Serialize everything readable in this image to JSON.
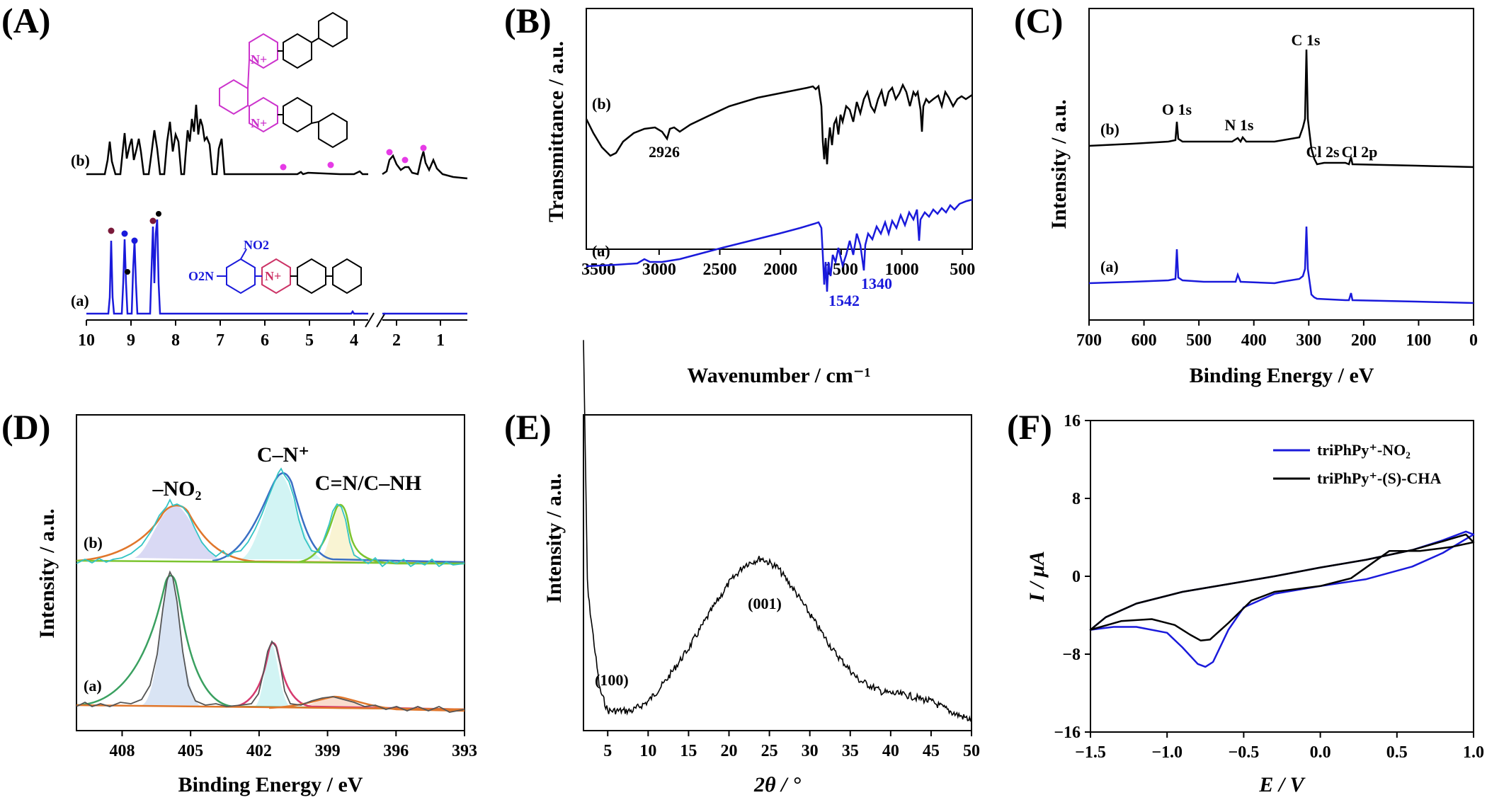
{
  "panels": [
    {
      "id": "A",
      "label": "(A)",
      "type": "line",
      "xlabel": "",
      "ylabel": "",
      "x_ticks": [
        10,
        9,
        8,
        7,
        6,
        5,
        4,
        2,
        1
      ],
      "axis_break_after": 4,
      "series_labels": [
        "(b)",
        "(a)"
      ],
      "structure_labels": {
        "nitro_top": "NO2",
        "nitro_left": "O2N",
        "n_plus": "N+"
      },
      "colors": {
        "a": "#1a1adb",
        "b": "#000000",
        "markers_b": "#e63be6",
        "marker_dark": "#7a1a3a",
        "structure_b": "#cc33cc"
      }
    },
    {
      "id": "B",
      "label": "(B)",
      "type": "line",
      "xlabel": "Wavenumber / cm⁻¹",
      "ylabel": "Transmittance / a.u.",
      "x_ticks": [
        3500,
        3000,
        2500,
        2000,
        1500,
        1000,
        500
      ],
      "xlim": [
        3600,
        420
      ],
      "series_labels": [
        "(b)",
        "(a)"
      ],
      "annotations": [
        "2926",
        "1542",
        "1340"
      ],
      "colors": {
        "a": "#1a1adb",
        "b": "#000000"
      }
    },
    {
      "id": "C",
      "label": "(C)",
      "type": "line",
      "xlabel": "Binding Energy / eV",
      "ylabel": "Intensity / a.u.",
      "x_ticks": [
        700,
        600,
        500,
        400,
        300,
        200,
        100,
        0
      ],
      "xlim": [
        700,
        0
      ],
      "series_labels": [
        "(b)",
        "(a)"
      ],
      "annotations": [
        "C 1s",
        "O 1s",
        "N 1s",
        "Cl 2s",
        "Cl 2p"
      ],
      "colors": {
        "a": "#1a1adb",
        "b": "#000000"
      }
    },
    {
      "id": "D",
      "label": "(D)",
      "type": "line",
      "xlabel": "Binding Energy / eV",
      "ylabel": "Intensity / a.u.",
      "x_ticks": [
        408,
        405,
        402,
        399,
        396,
        393
      ],
      "xlim": [
        410,
        393
      ],
      "series_labels": [
        "(b)",
        "(a)"
      ],
      "annotations": [
        "–NO₂",
        "C–N⁺",
        "C=N/C–NH"
      ],
      "colors": {
        "raw_b": "#33c4c4",
        "raw_a": "#555555",
        "fit_nitro": "#e0762b",
        "fit_cn": "#3a6fc4",
        "fit_cnh": "#7cc430",
        "fit_envelope_a": "#d63a6f",
        "fill_nitro": "#c9c9f0",
        "fill_cn": "#bff0f0",
        "fill_cnh": "#f7d3c0"
      }
    },
    {
      "id": "E",
      "label": "(E)",
      "type": "line",
      "xlabel": "2θ / °",
      "ylabel": "Intensity / a.u.",
      "x_ticks": [
        5,
        10,
        15,
        20,
        25,
        30,
        35,
        40,
        45,
        50
      ],
      "xlim": [
        2,
        50
      ],
      "annotations": [
        "(001)",
        "(100)"
      ],
      "colors": {
        "line": "#000000"
      }
    },
    {
      "id": "F",
      "label": "(F)",
      "type": "line",
      "xlabel": "E / V",
      "ylabel": "I / μA",
      "x_ticks": [
        "−1.5",
        "−1.0",
        "−0.5",
        "0.0",
        "0.5",
        "1.0"
      ],
      "y_ticks": [
        "16",
        "8",
        "0",
        "−8",
        "−16"
      ],
      "xlim": [
        -1.5,
        1.0
      ],
      "ylim": [
        -16,
        16
      ],
      "legend_position": "top-right",
      "legend": [
        {
          "name": "triPhPy⁺-NO₂",
          "color": "#1a1adb"
        },
        {
          "name": "triPhPy⁺-(S)-CHA",
          "color": "#000000"
        }
      ]
    }
  ],
  "chart_data": [
    {
      "panel": "E",
      "type": "line",
      "x": [
        2,
        2.5,
        4,
        5,
        8,
        10,
        12,
        15,
        18,
        20,
        22,
        24,
        26,
        28,
        30,
        33,
        36,
        39,
        42,
        45,
        48,
        50
      ],
      "y": [
        6.2,
        2.2,
        0.6,
        0.25,
        0.25,
        0.4,
        0.7,
        1.25,
        1.9,
        2.3,
        2.6,
        2.7,
        2.55,
        2.2,
        1.8,
        1.2,
        0.75,
        0.55,
        0.5,
        0.4,
        0.2,
        0.1
      ],
      "peaks": [
        {
          "label": "(100)",
          "x": 3.8
        },
        {
          "label": "(001)",
          "x": 24.5
        }
      ]
    },
    {
      "panel": "F",
      "type": "line",
      "series": [
        {
          "name": "triPhPy⁺-NO₂",
          "x": [
            -1.5,
            -1.35,
            -1.2,
            -1.0,
            -0.9,
            -0.8,
            -0.75,
            -0.7,
            -0.6,
            -0.5,
            -0.3,
            0.0,
            0.3,
            0.6,
            0.8,
            1.0,
            0.95,
            0.8,
            0.6,
            0.3,
            0.0,
            -0.3,
            -0.6,
            -0.9,
            -1.2,
            -1.4,
            -1.5
          ],
          "y": [
            -5.5,
            -5.2,
            -5.2,
            -5.8,
            -7.3,
            -9.0,
            -9.3,
            -8.8,
            -5.5,
            -3.2,
            -1.8,
            -1.0,
            -0.3,
            1.0,
            2.4,
            4.3,
            4.6,
            3.7,
            2.7,
            1.7,
            0.9,
            0.0,
            -0.8,
            -1.6,
            -2.8,
            -4.2,
            -5.5
          ]
        },
        {
          "name": "triPhPy⁺-(S)-CHA",
          "x": [
            -1.5,
            -1.3,
            -1.1,
            -0.95,
            -0.85,
            -0.78,
            -0.72,
            -0.6,
            -0.45,
            -0.3,
            0.0,
            0.2,
            0.45,
            0.65,
            0.85,
            1.0,
            0.95,
            0.8,
            0.6,
            0.3,
            0.0,
            -0.3,
            -0.6,
            -0.9,
            -1.2,
            -1.4,
            -1.5
          ],
          "y": [
            -5.5,
            -4.6,
            -4.4,
            -5.0,
            -6.0,
            -6.6,
            -6.5,
            -4.8,
            -2.5,
            -1.6,
            -1.0,
            -0.2,
            2.6,
            2.6,
            3.0,
            3.5,
            4.3,
            3.6,
            2.7,
            1.7,
            0.9,
            0.0,
            -0.8,
            -1.6,
            -2.8,
            -4.2,
            -5.5
          ]
        }
      ]
    }
  ]
}
